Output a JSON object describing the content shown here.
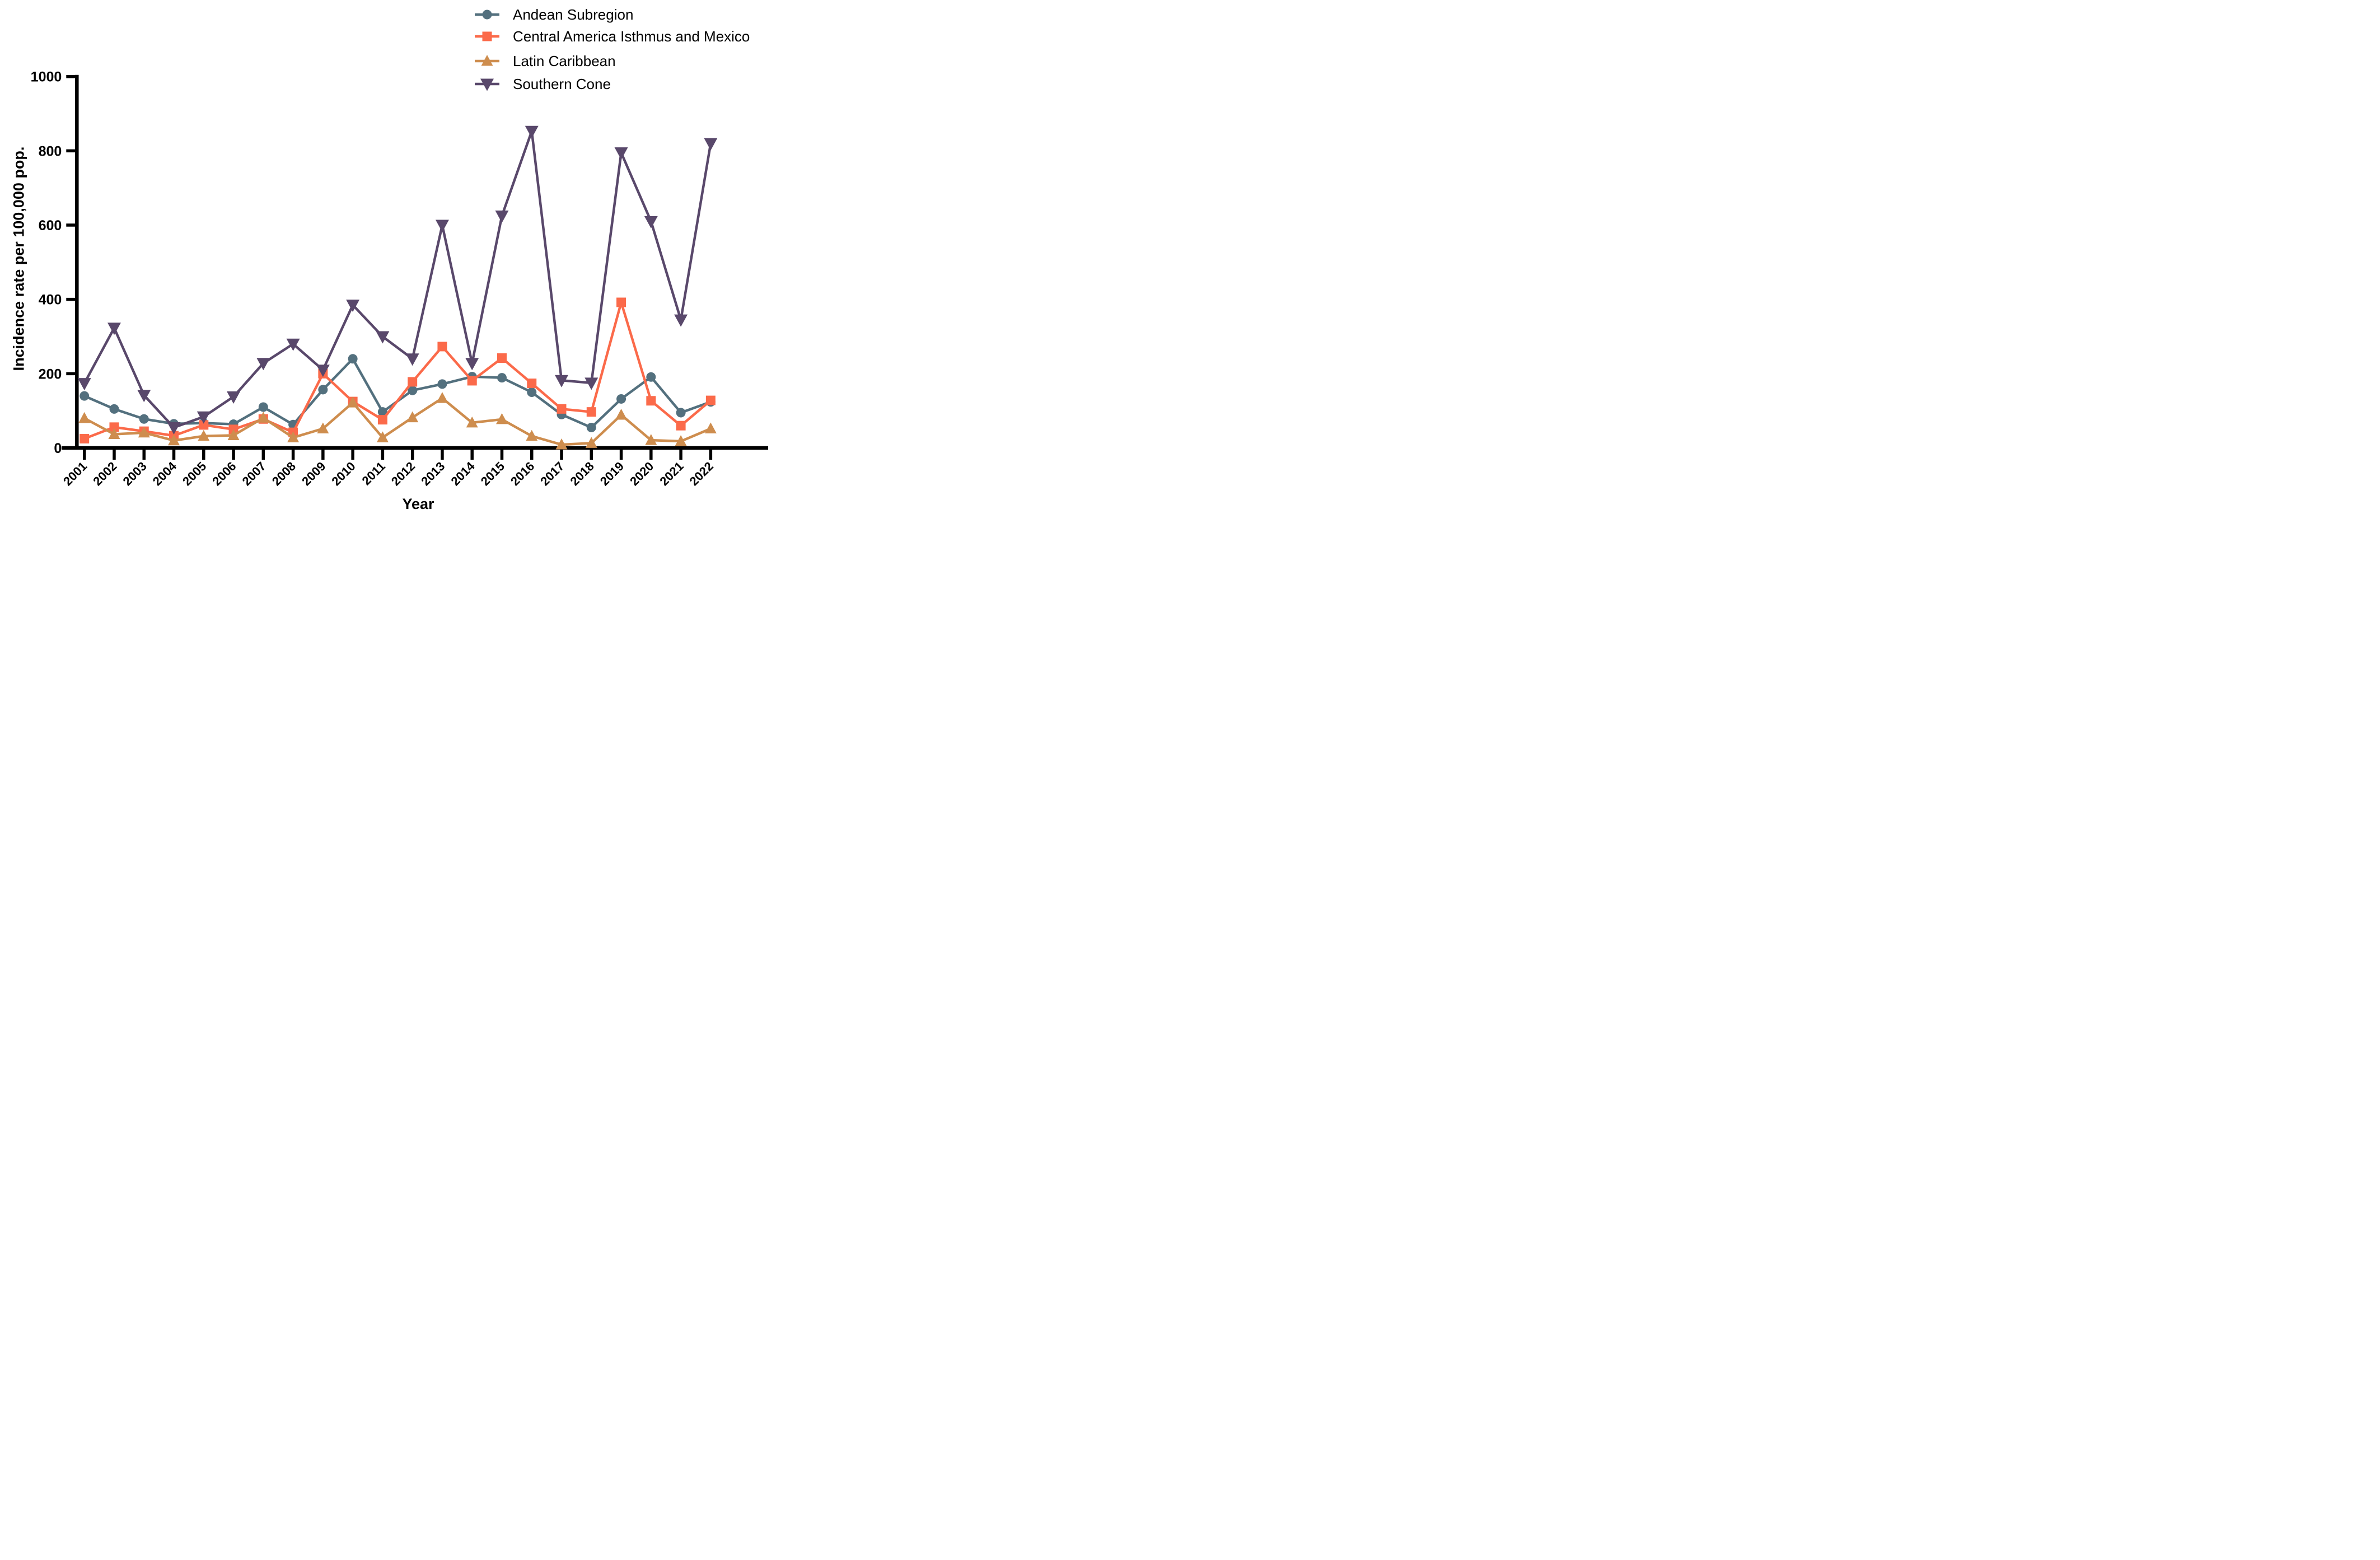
{
  "chart_data": {
    "type": "line",
    "title": "",
    "xlabel": "Year",
    "ylabel": "Incidence rate per 100,000 pop.",
    "x": [
      2001,
      2002,
      2003,
      2004,
      2005,
      2006,
      2007,
      2008,
      2009,
      2010,
      2011,
      2012,
      2013,
      2014,
      2015,
      2016,
      2017,
      2018,
      2019,
      2020,
      2021,
      2022
    ],
    "ylim": [
      0,
      1000
    ],
    "yticks": [
      0,
      200,
      400,
      600,
      800,
      1000
    ],
    "grid": false,
    "legend_position": "top-right",
    "x_tick_rotation": 45,
    "axis_color": "#000000",
    "series": [
      {
        "name": "Andean Subregion",
        "color": "#53707E",
        "marker": "circle",
        "values": [
          140,
          105,
          78,
          65,
          67,
          64,
          110,
          63,
          157,
          240,
          97,
          155,
          172,
          192,
          189,
          150,
          90,
          55,
          132,
          191,
          95,
          124
        ]
      },
      {
        "name": "Central America Isthmus and Mexico",
        "color": "#FB6A4A",
        "marker": "square",
        "values": [
          25,
          56,
          45,
          33,
          62,
          50,
          78,
          42,
          200,
          125,
          76,
          178,
          273,
          181,
          242,
          174,
          105,
          97,
          392,
          127,
          60,
          128
        ]
      },
      {
        "name": "Latin Caribbean",
        "color": "#CE8D4E",
        "marker": "triangle-up",
        "values": [
          80,
          37,
          41,
          20,
          32,
          34,
          81,
          28,
          52,
          122,
          28,
          82,
          134,
          68,
          77,
          32,
          9,
          13,
          89,
          21,
          18,
          52
        ]
      },
      {
        "name": "Southern Cone",
        "color": "#59486B",
        "marker": "triangle-down",
        "values": [
          174,
          323,
          142,
          55,
          84,
          138,
          228,
          280,
          210,
          385,
          300,
          240,
          600,
          228,
          625,
          853,
          182,
          175,
          795,
          610,
          345,
          820
        ]
      }
    ]
  }
}
